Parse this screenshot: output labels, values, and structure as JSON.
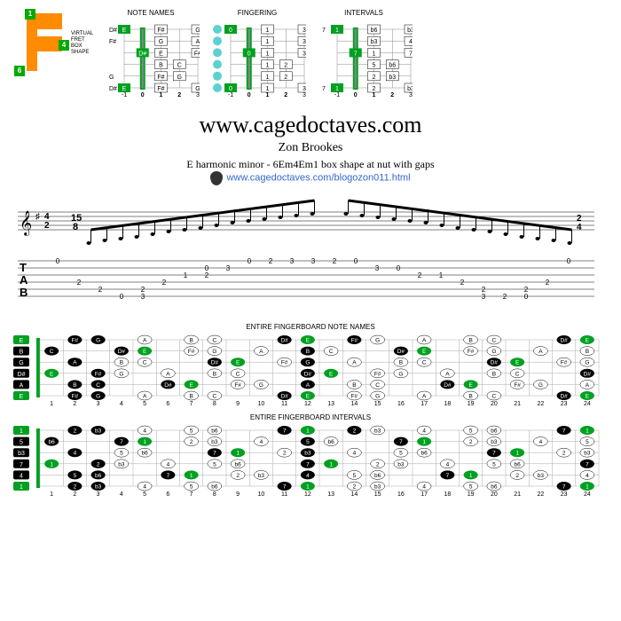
{
  "virtual_fret": {
    "label": "VIRTUAL FRET\nBOX SHAPE",
    "nums": [
      "1",
      "4",
      "6"
    ]
  },
  "colors": {
    "green": "#00a020",
    "black": "#000",
    "orange": "#ff8c00",
    "cyan": "#5fd0d0",
    "grey": "#888"
  },
  "box_diagrams": [
    {
      "title": "NOTE NAMES",
      "frets": [
        "-1",
        "0",
        "1",
        "2",
        "3"
      ],
      "left": [
        "D#",
        "F#",
        "G",
        "D#"
      ],
      "cells": [
        [
          "E",
          "",
          "F#",
          "",
          "G"
        ],
        [
          "",
          "",
          "G",
          "",
          "A"
        ],
        [
          "",
          "D#",
          "E",
          "",
          "F#"
        ],
        [
          "",
          "",
          "B",
          "C",
          ""
        ],
        [
          "",
          "",
          "F#",
          "G",
          ""
        ],
        [
          "E",
          "",
          "F#",
          "",
          "G"
        ]
      ],
      "nut_green": true
    },
    {
      "title": "FINGERING",
      "frets": [
        "-1",
        "0",
        "1",
        "2",
        "3"
      ],
      "left": [
        "",
        "",
        "",
        "",
        ""
      ],
      "cells": [
        [
          "0",
          "",
          "1",
          "",
          "3"
        ],
        [
          "",
          "",
          "1",
          "",
          "3"
        ],
        [
          "",
          "0",
          "1",
          "",
          "3"
        ],
        [
          "",
          "",
          "1",
          "2",
          ""
        ],
        [
          "",
          "",
          "1",
          "2",
          ""
        ],
        [
          "0",
          "",
          "1",
          "",
          "3"
        ]
      ],
      "dots_left": true
    },
    {
      "title": "INTERVALS",
      "frets": [
        "-1",
        "0",
        "1",
        "2",
        "3"
      ],
      "left": [
        "7",
        "",
        "",
        "7"
      ],
      "cells": [
        [
          "1",
          "",
          "b6",
          "",
          "b3"
        ],
        [
          "",
          "",
          "b3",
          "",
          "4"
        ],
        [
          "",
          "7",
          "1",
          "",
          "7"
        ],
        [
          "",
          "",
          "5",
          "b6",
          ""
        ],
        [
          "",
          "",
          "2",
          "b3",
          ""
        ],
        [
          "1",
          "",
          "2",
          "",
          "b3"
        ]
      ]
    }
  ],
  "title": {
    "url": "www.cagedoctaves.com",
    "author": "Zon Brookes",
    "subtitle": "E harmonic minor - 6Em4Em1 box shape at nut with gaps",
    "link": "www.cagedoctaves.com/blogozon011.html"
  },
  "tab": {
    "time_sigs": [
      "2/4",
      "15/8",
      "2/4"
    ],
    "lines": [
      [
        "0",
        "",
        " ",
        " ",
        " ",
        " ",
        " ",
        " ",
        " ",
        "0",
        "2",
        "3",
        "3",
        "2",
        "0",
        " ",
        " ",
        " ",
        " ",
        " ",
        " ",
        " ",
        " ",
        "",
        "0"
      ],
      [
        " ",
        " ",
        " ",
        " ",
        " ",
        " ",
        " ",
        "0",
        "3",
        " ",
        " ",
        " ",
        " ",
        " ",
        " ",
        "3",
        "0",
        " ",
        " ",
        " ",
        " ",
        " ",
        " ",
        " ",
        " "
      ],
      [
        " ",
        " ",
        " ",
        " ",
        " ",
        " ",
        "1",
        "2",
        " ",
        " ",
        " ",
        " ",
        " ",
        " ",
        " ",
        " ",
        " ",
        "2",
        "1",
        " ",
        " ",
        " ",
        " ",
        " ",
        " "
      ],
      [
        " ",
        "2",
        " ",
        " ",
        " ",
        "2",
        " ",
        " ",
        " ",
        " ",
        " ",
        " ",
        " ",
        " ",
        " ",
        " ",
        " ",
        " ",
        " ",
        "2",
        " ",
        " ",
        " ",
        "2",
        " "
      ],
      [
        " ",
        " ",
        "2",
        " ",
        "2",
        " ",
        " ",
        " ",
        " ",
        " ",
        " ",
        " ",
        " ",
        " ",
        " ",
        " ",
        " ",
        " ",
        " ",
        " ",
        "2",
        " ",
        "2",
        " ",
        " "
      ],
      [
        " ",
        " ",
        " ",
        "0",
        "3",
        " ",
        " ",
        " ",
        " ",
        " ",
        " ",
        " ",
        " ",
        " ",
        " ",
        " ",
        " ",
        " ",
        " ",
        " ",
        "3",
        "2",
        "0",
        " ",
        " "
      ]
    ]
  },
  "fingerboard_notes": {
    "title": "ENTIRE FINGERBOARD NOTE NAMES",
    "frets": 24,
    "open": [
      "E",
      "B",
      "G",
      "D#",
      "A",
      "E"
    ],
    "rows": [
      {
        "c": [
          [
            "F#",
            2,
            "b"
          ],
          [
            "G",
            3,
            "b"
          ],
          [
            "A",
            5
          ],
          [
            "B",
            7
          ],
          [
            "C",
            8
          ],
          [
            "D#",
            11,
            "b"
          ],
          [
            "E",
            12,
            "g"
          ],
          [
            "F#",
            14,
            "b"
          ],
          [
            "G",
            15
          ],
          [
            "A",
            17
          ],
          [
            "B",
            19
          ],
          [
            "C",
            20
          ],
          [
            "D#",
            23,
            "b"
          ],
          [
            "E",
            24,
            "g"
          ]
        ]
      },
      {
        "c": [
          [
            "C",
            1,
            "b"
          ],
          [
            "D#",
            4,
            "b"
          ],
          [
            "E",
            5,
            "g"
          ],
          [
            "F#",
            7
          ],
          [
            "G",
            8
          ],
          [
            "A",
            10
          ],
          [
            "B",
            12,
            "b"
          ],
          [
            "C",
            13
          ],
          [
            "D#",
            16,
            "b"
          ],
          [
            "E",
            17,
            "g"
          ],
          [
            "F#",
            19
          ],
          [
            "G",
            20
          ],
          [
            "A",
            22
          ],
          [
            "B",
            24
          ]
        ]
      },
      {
        "c": [
          [
            "A",
            2,
            "b"
          ],
          [
            "B",
            4
          ],
          [
            "C",
            5
          ],
          [
            "D#",
            8,
            "b"
          ],
          [
            "E",
            9,
            "g"
          ],
          [
            "F#",
            11
          ],
          [
            "G",
            12,
            "b"
          ],
          [
            "A",
            14
          ],
          [
            "B",
            16
          ],
          [
            "C",
            17
          ],
          [
            "D#",
            20,
            "b"
          ],
          [
            "E",
            21,
            "g"
          ],
          [
            "F#",
            23
          ],
          [
            "G",
            24
          ]
        ]
      },
      {
        "c": [
          [
            "E",
            1,
            "g"
          ],
          [
            "F#",
            3,
            "b"
          ],
          [
            "G",
            4
          ],
          [
            "A",
            6
          ],
          [
            "B",
            8
          ],
          [
            "C",
            9
          ],
          [
            "D#",
            12,
            "b"
          ],
          [
            "E",
            13,
            "g"
          ],
          [
            "F#",
            15
          ],
          [
            "G",
            16
          ],
          [
            "A",
            18
          ],
          [
            "B",
            20
          ],
          [
            "C",
            21
          ],
          [
            "D#",
            24,
            "b"
          ]
        ]
      },
      {
        "c": [
          [
            "B",
            2,
            "b"
          ],
          [
            "C",
            3,
            "b"
          ],
          [
            "D#",
            6,
            "b"
          ],
          [
            "E",
            7,
            "g"
          ],
          [
            "F#",
            9
          ],
          [
            "G",
            10
          ],
          [
            "A",
            12,
            "b"
          ],
          [
            "B",
            14
          ],
          [
            "C",
            15
          ],
          [
            "D#",
            18,
            "b"
          ],
          [
            "E",
            19,
            "g"
          ],
          [
            "F#",
            21
          ],
          [
            "G",
            22
          ],
          [
            "A",
            24
          ]
        ]
      },
      {
        "c": [
          [
            "F#",
            2,
            "b"
          ],
          [
            "G",
            3,
            "b"
          ],
          [
            "A",
            5
          ],
          [
            "B",
            7
          ],
          [
            "C",
            8
          ],
          [
            "D#",
            11,
            "b"
          ],
          [
            "E",
            12,
            "g"
          ],
          [
            "F#",
            14
          ],
          [
            "G",
            15
          ],
          [
            "A",
            17
          ],
          [
            "B",
            19
          ],
          [
            "C",
            20
          ],
          [
            "D#",
            23,
            "b"
          ],
          [
            "E",
            24,
            "g"
          ]
        ]
      }
    ]
  },
  "fingerboard_intervals": {
    "title": "ENTIRE FINGERBOARD INTERVALS",
    "frets": 24,
    "open": [
      "1",
      "5",
      "b3",
      "7",
      "4",
      "1"
    ],
    "rows": [
      {
        "c": [
          [
            "2",
            2,
            "b"
          ],
          [
            "b3",
            3,
            "b"
          ],
          [
            "4",
            5
          ],
          [
            "5",
            7
          ],
          [
            "b6",
            8
          ],
          [
            "7",
            11,
            "b"
          ],
          [
            "1",
            12,
            "g"
          ],
          [
            "2",
            14,
            "b"
          ],
          [
            "b3",
            15
          ],
          [
            "4",
            17
          ],
          [
            "5",
            19
          ],
          [
            "b6",
            20
          ],
          [
            "7",
            23,
            "b"
          ],
          [
            "1",
            24,
            "g"
          ]
        ]
      },
      {
        "c": [
          [
            "b6",
            1,
            "b"
          ],
          [
            "7",
            4,
            "b"
          ],
          [
            "1",
            5,
            "g"
          ],
          [
            "2",
            7
          ],
          [
            "b3",
            8
          ],
          [
            "4",
            10
          ],
          [
            "5",
            12,
            "b"
          ],
          [
            "b6",
            13
          ],
          [
            "7",
            16,
            "b"
          ],
          [
            "1",
            17,
            "g"
          ],
          [
            "2",
            19
          ],
          [
            "b3",
            20
          ],
          [
            "4",
            22
          ],
          [
            "5",
            24
          ]
        ]
      },
      {
        "c": [
          [
            "4",
            2,
            "b"
          ],
          [
            "5",
            4
          ],
          [
            "b6",
            5
          ],
          [
            "7",
            8,
            "b"
          ],
          [
            "1",
            9,
            "g"
          ],
          [
            "2",
            11
          ],
          [
            "b3",
            12,
            "b"
          ],
          [
            "4",
            14
          ],
          [
            "5",
            16
          ],
          [
            "b6",
            17
          ],
          [
            "7",
            20,
            "b"
          ],
          [
            "1",
            21,
            "g"
          ],
          [
            "2",
            23
          ],
          [
            "b3",
            24
          ]
        ]
      },
      {
        "c": [
          [
            "1",
            1,
            "g"
          ],
          [
            "2",
            3,
            "b"
          ],
          [
            "b3",
            4
          ],
          [
            "4",
            6
          ],
          [
            "5",
            8
          ],
          [
            "b6",
            9
          ],
          [
            "7",
            12,
            "b"
          ],
          [
            "1",
            13,
            "g"
          ],
          [
            "2",
            15
          ],
          [
            "b3",
            16
          ],
          [
            "4",
            18
          ],
          [
            "5",
            20
          ],
          [
            "b6",
            21
          ],
          [
            "7",
            24,
            "b"
          ]
        ]
      },
      {
        "c": [
          [
            "5",
            2,
            "b"
          ],
          [
            "b6",
            3,
            "b"
          ],
          [
            "7",
            6,
            "b"
          ],
          [
            "1",
            7,
            "g"
          ],
          [
            "2",
            9
          ],
          [
            "b3",
            10
          ],
          [
            "4",
            12,
            "b"
          ],
          [
            "5",
            14
          ],
          [
            "b6",
            15
          ],
          [
            "7",
            18,
            "b"
          ],
          [
            "1",
            19,
            "g"
          ],
          [
            "2",
            21
          ],
          [
            "b3",
            22
          ],
          [
            "4",
            24
          ]
        ]
      },
      {
        "c": [
          [
            "2",
            2,
            "b"
          ],
          [
            "b3",
            3,
            "b"
          ],
          [
            "4",
            5
          ],
          [
            "5",
            7
          ],
          [
            "b6",
            8
          ],
          [
            "7",
            11,
            "b"
          ],
          [
            "1",
            12,
            "g"
          ],
          [
            "2",
            14
          ],
          [
            "b3",
            15
          ],
          [
            "4",
            17
          ],
          [
            "5",
            19
          ],
          [
            "b6",
            20
          ],
          [
            "7",
            23,
            "b"
          ],
          [
            "1",
            24,
            "g"
          ]
        ]
      }
    ]
  }
}
